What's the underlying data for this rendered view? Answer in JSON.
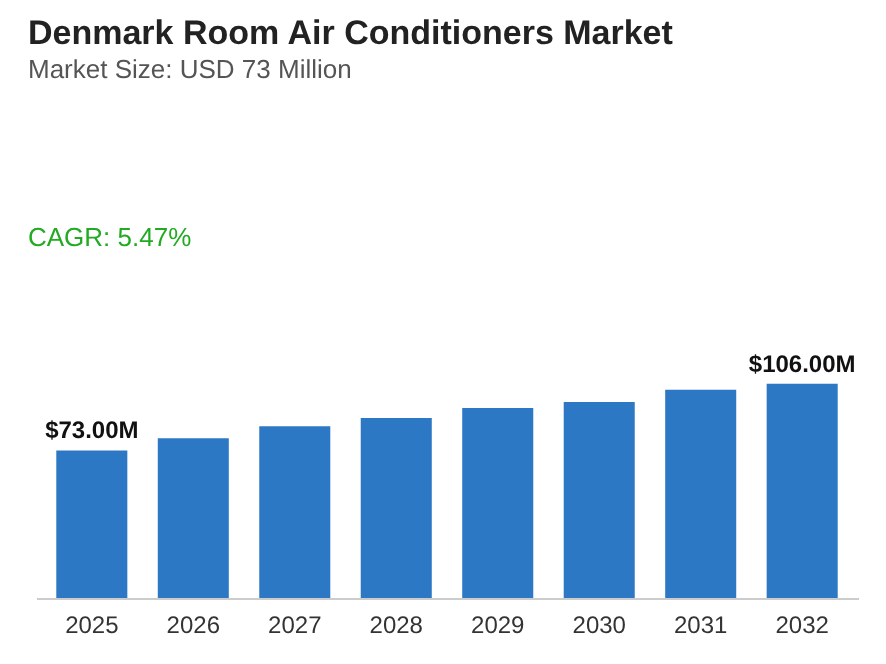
{
  "chart_data": {
    "type": "bar",
    "title": "Denmark Room Air Conditioners Market",
    "subtitle": "Market Size: USD 73 Million",
    "annotations": [
      "CAGR: 5.47%"
    ],
    "categories": [
      "2025",
      "2026",
      "2027",
      "2028",
      "2029",
      "2030",
      "2031",
      "2032"
    ],
    "values": [
      73,
      79,
      85,
      89,
      94,
      97,
      103,
      106
    ],
    "value_labels": [
      "$73.00M",
      null,
      null,
      null,
      null,
      null,
      null,
      "$106.00M"
    ],
    "color": "#2c78c4",
    "grid": false
  }
}
